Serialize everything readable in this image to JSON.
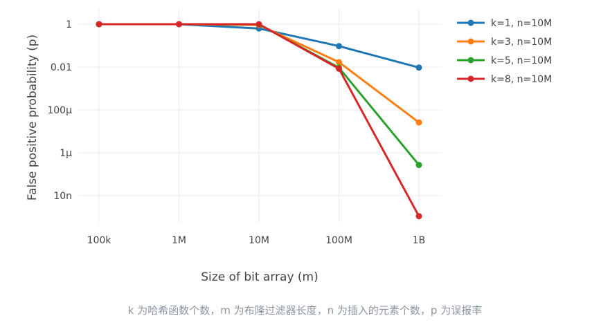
{
  "caption": "k 为哈希函数个数，m 为布隆过滤器长度，n 为插入的元素个数，p 为误报率",
  "chart_data": {
    "type": "line",
    "title": "",
    "xlabel": "Size of bit array (m)",
    "ylabel": "False positive probability (p)",
    "x_scale": "log",
    "y_scale": "log",
    "categories": [
      "100k",
      "1M",
      "10M",
      "100M",
      "1B"
    ],
    "x": [
      100000,
      1000000,
      10000000,
      100000000,
      1000000000
    ],
    "yticks": [
      {
        "value": 1,
        "label": "1"
      },
      {
        "value": 0.01,
        "label": "0.01"
      },
      {
        "value": 0.0001,
        "label": "100μ"
      },
      {
        "value": 1e-06,
        "label": "1μ"
      },
      {
        "value": 1e-08,
        "label": "10n"
      }
    ],
    "ylim": [
      1e-09,
      5
    ],
    "grid": true,
    "legend_position": "top-right",
    "series": [
      {
        "name": "k=1, n=10M",
        "color": "#1f77b4",
        "values": [
          1,
          1,
          0.63,
          0.095,
          0.0095
        ]
      },
      {
        "name": "k=3, n=10M",
        "color": "#ff7f0e",
        "values": [
          1,
          1,
          0.92,
          0.017,
          2.6e-05
        ]
      },
      {
        "name": "k=5, n=10M",
        "color": "#2ca02c",
        "values": [
          1,
          1,
          0.98,
          0.0094,
          2.7e-07
        ]
      },
      {
        "name": "k=8, n=10M",
        "color": "#d62728",
        "values": [
          1,
          1,
          1,
          0.0084,
          1.1e-09
        ]
      }
    ]
  }
}
